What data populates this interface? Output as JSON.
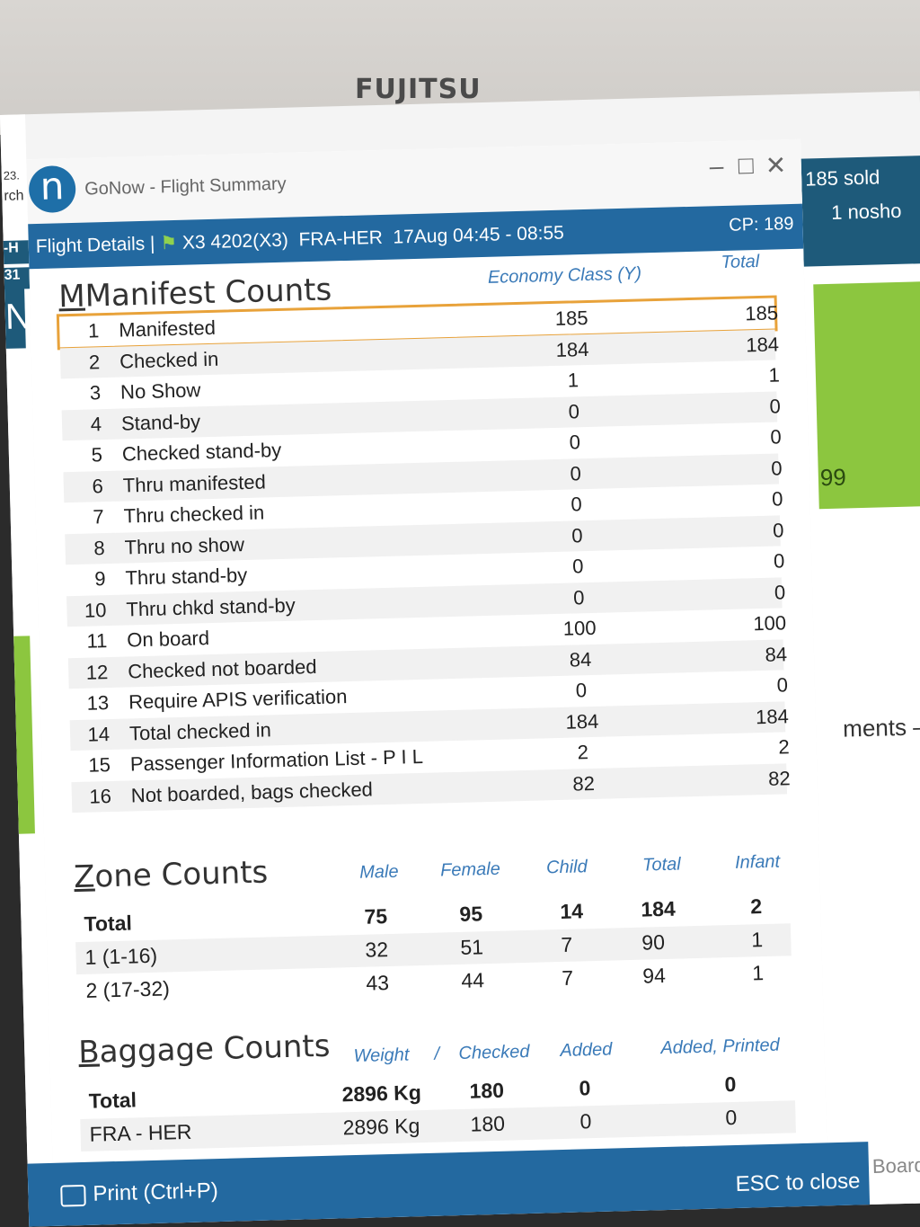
{
  "monitor": {
    "brand": "FUJITSU"
  },
  "background": {
    "left_text_1": "23.",
    "left_text_2": "rch",
    "left_text_3": "-H",
    "left_text_4": "31",
    "left_text_5": "N",
    "right_sold": "185 sold",
    "right_noshow": "1 nosho",
    "right_green_text": "99",
    "right_ments": "ments –",
    "right_board": "Board"
  },
  "window": {
    "title": "GoNow - Flight Summary",
    "controls": {
      "minimize": "–",
      "maximize": "□",
      "close": "✕"
    }
  },
  "header": {
    "label": "Flight Details |",
    "flight": "X3 4202(X3)",
    "route": "FRA-HER",
    "date_time": "17Aug 04:45 - 08:55",
    "cp": "CP: 189"
  },
  "manifest": {
    "title": "Manifest Counts",
    "col_economy": "Economy Class (Y)",
    "col_total": "Total",
    "rows": [
      {
        "num": "1",
        "label": "Manifested",
        "economy": "185",
        "total": "185"
      },
      {
        "num": "2",
        "label": "Checked in",
        "economy": "184",
        "total": "184"
      },
      {
        "num": "3",
        "label": "No Show",
        "economy": "1",
        "total": "1"
      },
      {
        "num": "4",
        "label": "Stand-by",
        "economy": "0",
        "total": "0"
      },
      {
        "num": "5",
        "label": "Checked stand-by",
        "economy": "0",
        "total": "0"
      },
      {
        "num": "6",
        "label": "Thru manifested",
        "economy": "0",
        "total": "0"
      },
      {
        "num": "7",
        "label": "Thru checked in",
        "economy": "0",
        "total": "0"
      },
      {
        "num": "8",
        "label": "Thru no show",
        "economy": "0",
        "total": "0"
      },
      {
        "num": "9",
        "label": "Thru stand-by",
        "economy": "0",
        "total": "0"
      },
      {
        "num": "10",
        "label": "Thru chkd stand-by",
        "economy": "0",
        "total": "0"
      },
      {
        "num": "11",
        "label": "On board",
        "economy": "100",
        "total": "100"
      },
      {
        "num": "12",
        "label": "Checked not boarded",
        "economy": "84",
        "total": "84"
      },
      {
        "num": "13",
        "label": "Require APIS verification",
        "economy": "0",
        "total": "0"
      },
      {
        "num": "14",
        "label": "Total checked in",
        "economy": "184",
        "total": "184"
      },
      {
        "num": "15",
        "label": "Passenger Information List - P I L",
        "economy": "2",
        "total": "2"
      },
      {
        "num": "16",
        "label": "Not boarded, bags checked",
        "economy": "82",
        "total": "82"
      }
    ]
  },
  "zones": {
    "title": "Zone Counts",
    "headers": [
      "Male",
      "Female",
      "Child",
      "Total",
      "Infant"
    ],
    "rows": [
      {
        "label": "Total",
        "male": "75",
        "female": "95",
        "child": "14",
        "total": "184",
        "infant": "2"
      },
      {
        "label": "1 (1-16)",
        "male": "32",
        "female": "51",
        "child": "7",
        "total": "90",
        "infant": "1"
      },
      {
        "label": "2 (17-32)",
        "male": "43",
        "female": "44",
        "child": "7",
        "total": "94",
        "infant": "1"
      }
    ]
  },
  "baggage": {
    "title": "Baggage Counts",
    "headers": [
      "Weight",
      "/",
      "Checked",
      "Added",
      "Added, Printed"
    ],
    "rows": [
      {
        "label": "Total",
        "weight": "2896 Kg",
        "checked": "180",
        "added": "0",
        "printed": "0"
      },
      {
        "label": "FRA - HER",
        "weight": "2896 Kg",
        "checked": "180",
        "added": "0",
        "printed": "0"
      }
    ]
  },
  "footer": {
    "print": "Print (Ctrl+P)",
    "esc": "ESC to close"
  }
}
